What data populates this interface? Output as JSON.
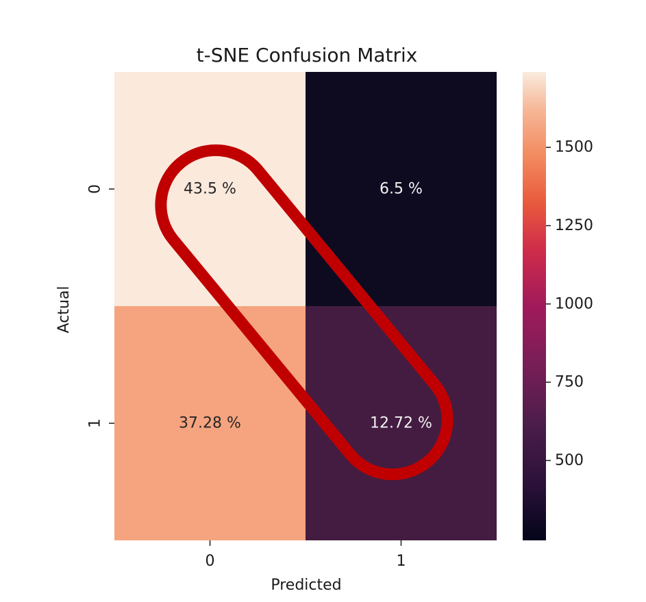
{
  "chart_data": {
    "type": "heatmap",
    "title": "t-SNE Confusion Matrix",
    "xlabel": "Predicted",
    "ylabel": "Actual",
    "x_categories": [
      "0",
      "1"
    ],
    "y_categories": [
      "0",
      "1"
    ],
    "cell_labels": [
      [
        "43.5 %",
        "6.5 %"
      ],
      [
        "37.28 %",
        "12.72 %"
      ]
    ],
    "percent_values": [
      [
        43.5,
        6.5
      ],
      [
        37.28,
        12.72
      ]
    ],
    "cell_colors": [
      [
        "#fbe9dc",
        "#0e0b21"
      ],
      [
        "#f5a47f",
        "#441c41"
      ]
    ],
    "colorbar": {
      "ticks": [
        500,
        750,
        1000,
        1250,
        1500
      ],
      "range": [
        245,
        1741
      ],
      "colormap": "rocket"
    },
    "annotation": {
      "shape": "rounded-outline",
      "color": "#c00000",
      "encloses": "main-diagonal"
    }
  }
}
